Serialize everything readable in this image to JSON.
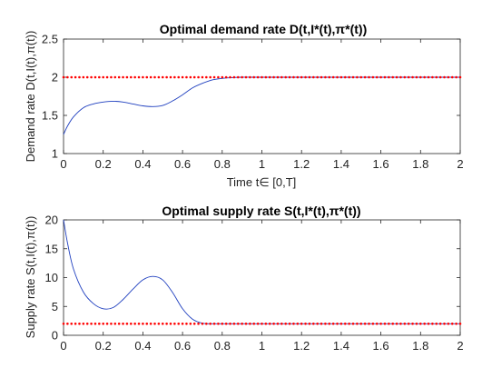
{
  "chart_data": [
    {
      "type": "line",
      "title": "Optimal demand   rate D(t,I*(t),π*(t))",
      "xlabel": "Time t∈ [0,T]",
      "ylabel": "Demand  rate  D(t,I(t),π(t))",
      "xlim": [
        0,
        2
      ],
      "ylim": [
        1,
        2.5
      ],
      "xticks": [
        "0",
        "0.2",
        "0.4",
        "0.6",
        "0.8",
        "1",
        "1.2",
        "1.4",
        "1.6",
        "1.8",
        "2"
      ],
      "yticks": [
        "1",
        "1.5",
        "2",
        "2.5"
      ],
      "grid": false,
      "series": [
        {
          "style": "solid",
          "color": "#1f3fbf",
          "x": [
            0,
            0.02,
            0.05,
            0.1,
            0.15,
            0.2,
            0.25,
            0.3,
            0.35,
            0.4,
            0.45,
            0.5,
            0.55,
            0.6,
            0.65,
            0.7,
            0.75,
            0.8,
            0.85,
            0.9,
            0.95,
            1.0,
            1.1,
            1.2,
            1.4,
            1.6,
            1.8,
            2.0
          ],
          "values": [
            1.25,
            1.36,
            1.48,
            1.6,
            1.65,
            1.675,
            1.685,
            1.675,
            1.65,
            1.625,
            1.615,
            1.63,
            1.69,
            1.77,
            1.86,
            1.92,
            1.965,
            1.985,
            1.995,
            2.0,
            2.0,
            2.0,
            2.0,
            2.0,
            2.0,
            2.0,
            2.0,
            2.0
          ]
        },
        {
          "style": "dotted",
          "color": "#ff0000",
          "y": 2.0,
          "x_start": 0,
          "x_end": 2,
          "point_count": 101
        }
      ]
    },
    {
      "type": "line",
      "title": "Optimal supply rate S(t,I*(t),π*(t))",
      "xlabel": "",
      "ylabel": "Supply  rate  S(t,I(t),π(t))",
      "xlim": [
        0,
        2
      ],
      "ylim": [
        0,
        20
      ],
      "xticks": [
        "0",
        "0.2",
        "0.4",
        "0.6",
        "0.8",
        "1",
        "1.2",
        "1.4",
        "1.6",
        "1.8",
        "2"
      ],
      "yticks": [
        "0",
        "5",
        "10",
        "15",
        "20"
      ],
      "grid": false,
      "series": [
        {
          "style": "solid",
          "color": "#1f3fbf",
          "x": [
            0,
            0.02,
            0.05,
            0.1,
            0.15,
            0.2,
            0.25,
            0.3,
            0.35,
            0.4,
            0.45,
            0.5,
            0.55,
            0.6,
            0.65,
            0.7,
            0.75,
            0.8,
            1.0,
            1.2,
            1.4,
            1.6,
            1.8,
            2.0
          ],
          "values": [
            20,
            16,
            11.5,
            7.5,
            5.5,
            4.6,
            4.8,
            6.2,
            8.0,
            9.6,
            10.2,
            9.6,
            7.4,
            4.6,
            2.8,
            2.1,
            2.0,
            2.0,
            2.0,
            2.0,
            2.0,
            2.0,
            2.0,
            2.0
          ]
        },
        {
          "style": "dotted",
          "color": "#ff0000",
          "y": 2.0,
          "x_start": 0,
          "x_end": 2,
          "point_count": 101
        }
      ]
    }
  ]
}
